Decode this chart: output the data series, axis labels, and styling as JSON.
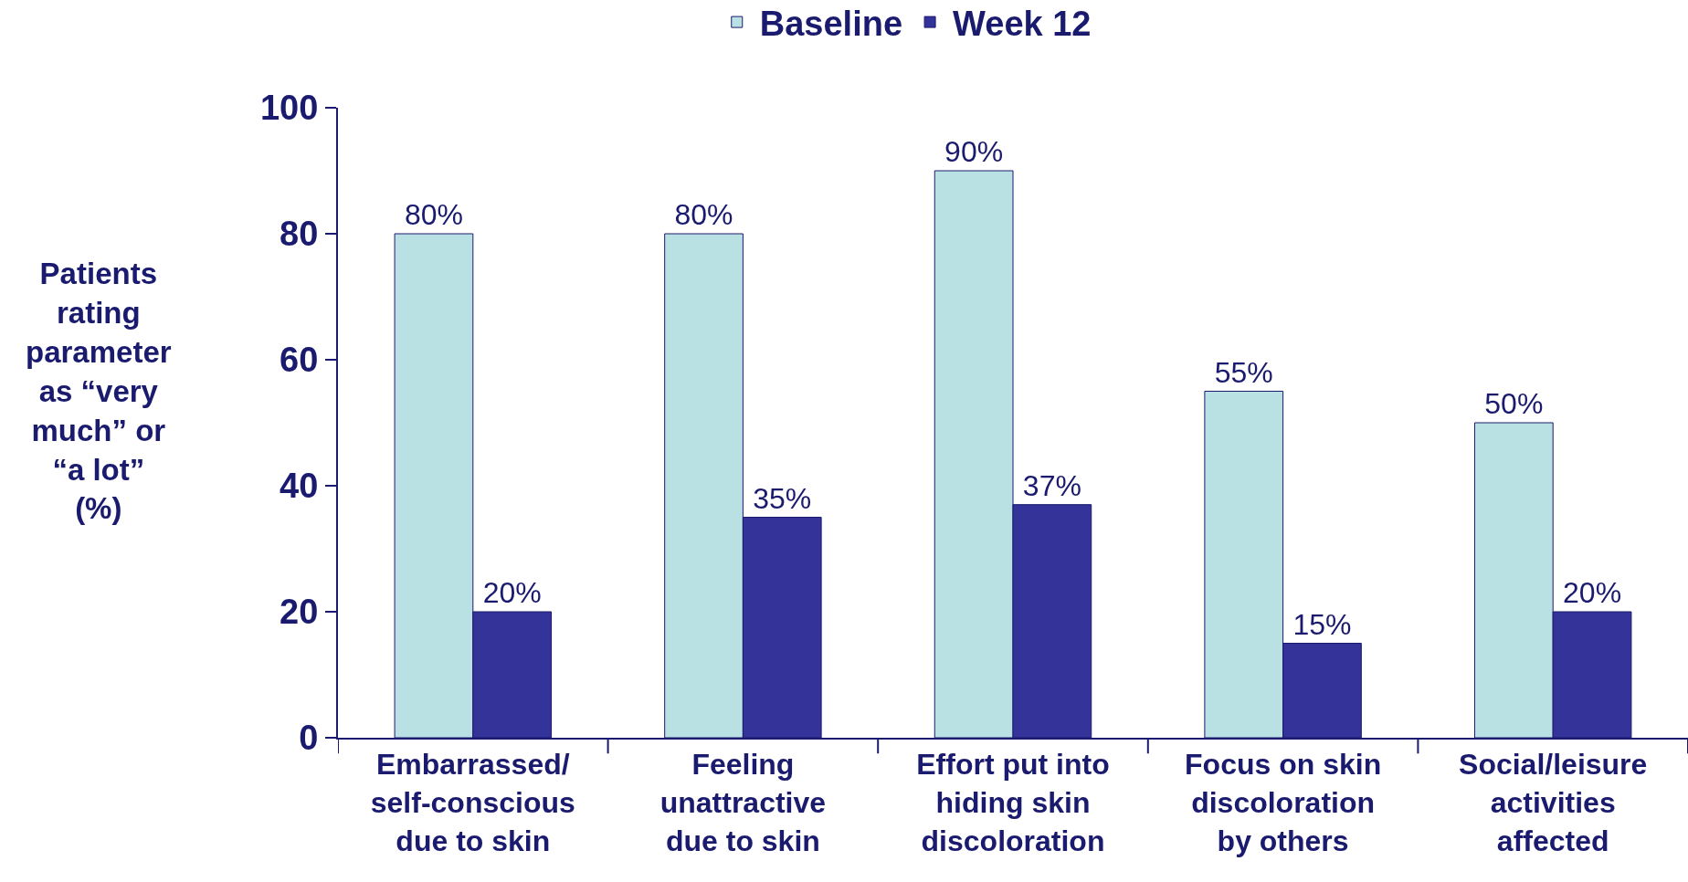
{
  "chart_data": {
    "type": "bar",
    "ylabel": "Patients rating parameter as “very much” or “a lot” (%)",
    "categories": [
      "Embarrassed/ self-conscious due to skin",
      "Feeling unattractive due to skin",
      "Effort put into hiding skin discoloration",
      "Focus on skin discoloration by others",
      "Social/leisure activities affected"
    ],
    "series": [
      {
        "name": "Baseline",
        "color": "#b9e1e3",
        "values": [
          80,
          80,
          90,
          55,
          50
        ],
        "value_labels": [
          "80%",
          "80%",
          "90%",
          "55%",
          "50%"
        ]
      },
      {
        "name": "Week 12",
        "color": "#333399",
        "values": [
          20,
          35,
          37,
          15,
          20
        ],
        "value_labels": [
          "20%",
          "35%",
          "37%",
          "15%",
          "20%"
        ]
      }
    ],
    "ylim": [
      0,
      100
    ],
    "yticks": [
      0,
      20,
      40,
      60,
      80,
      100
    ],
    "grid": false,
    "legend": "top"
  }
}
